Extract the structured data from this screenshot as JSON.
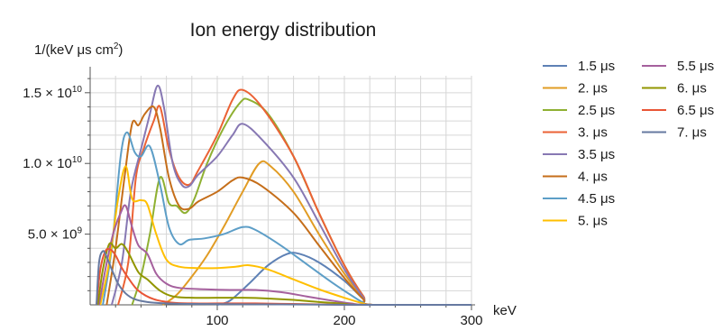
{
  "chart_data": {
    "type": "line",
    "title": "Ion energy distribution",
    "ylabel": "1/(keV μs cm2)",
    "xlabel": "keV",
    "xlim": [
      0,
      300
    ],
    "ylim": [
      0,
      16200000000.0
    ],
    "grid": true,
    "legend_position": "right",
    "x_ticks": [
      {
        "value": 100,
        "label": "100"
      },
      {
        "value": 200,
        "label": "200"
      },
      {
        "value": 300,
        "label": "300"
      }
    ],
    "y_ticks": [
      {
        "value": 5000000000.0,
        "mantissa": "5.0",
        "exponent": "9"
      },
      {
        "value": 10000000000.0,
        "mantissa": "1.0",
        "exponent": "10"
      },
      {
        "value": 15000000000.0,
        "mantissa": "1.5",
        "exponent": "10"
      }
    ],
    "series": [
      {
        "name": "1.5 μs",
        "color": "#5e81b5",
        "points": [
          [
            100,
            0
          ],
          [
            110,
            300000000.0
          ],
          [
            125,
            1500000000.0
          ],
          [
            140,
            2800000000.0
          ],
          [
            155,
            3600000000.0
          ],
          [
            165,
            3600000000.0
          ],
          [
            180,
            3000000000.0
          ],
          [
            200,
            1700000000.0
          ],
          [
            215,
            400000000.0
          ],
          [
            222,
            0
          ],
          [
            300,
            0
          ]
        ]
      },
      {
        "name": "2. μs",
        "color": "#e19c24",
        "points": [
          [
            57,
            0
          ],
          [
            68,
            700000000.0
          ],
          [
            80,
            2000000000.0
          ],
          [
            92,
            3500000000.0
          ],
          [
            105,
            5500000000.0
          ],
          [
            120,
            8000000000.0
          ],
          [
            133,
            10000000000.0
          ],
          [
            142,
            9800000000.0
          ],
          [
            160,
            8000000000.0
          ],
          [
            180,
            5000000000.0
          ],
          [
            200,
            2200000000.0
          ],
          [
            215,
            500000000.0
          ],
          [
            222,
            0
          ],
          [
            300,
            0
          ]
        ]
      },
      {
        "name": "2.5 μs",
        "color": "#8fb032",
        "points": [
          [
            33,
            0
          ],
          [
            40,
            2000000000.0
          ],
          [
            47,
            5000000000.0
          ],
          [
            55,
            9000000000.0
          ],
          [
            62,
            7200000000.0
          ],
          [
            68,
            7000000000.0
          ],
          [
            75,
            6500000000.0
          ],
          [
            82,
            7500000000.0
          ],
          [
            92,
            10000000000.0
          ],
          [
            105,
            12500000000.0
          ],
          [
            118,
            14300000000.0
          ],
          [
            125,
            14500000000.0
          ],
          [
            140,
            13500000000.0
          ],
          [
            160,
            10500000000.0
          ],
          [
            180,
            6500000000.0
          ],
          [
            200,
            2800000000.0
          ],
          [
            215,
            600000000.0
          ],
          [
            222,
            0
          ],
          [
            300,
            0
          ]
        ]
      },
      {
        "name": "3. μs",
        "color": "#eb6235",
        "points": [
          [
            22,
            0
          ],
          [
            30,
            3000000000.0
          ],
          [
            36,
            9000000000.0
          ],
          [
            42,
            11000000000.0
          ],
          [
            50,
            13000000000.0
          ],
          [
            55,
            14000000000.0
          ],
          [
            62,
            11000000000.0
          ],
          [
            70,
            9000000000.0
          ],
          [
            78,
            8500000000.0
          ],
          [
            85,
            9500000000.0
          ],
          [
            100,
            12000000000.0
          ],
          [
            112,
            14500000000.0
          ],
          [
            120,
            15200000000.0
          ],
          [
            135,
            14000000000.0
          ],
          [
            160,
            10500000000.0
          ],
          [
            180,
            6500000000.0
          ],
          [
            200,
            2800000000.0
          ],
          [
            215,
            600000000.0
          ],
          [
            222,
            0
          ],
          [
            300,
            0
          ]
        ]
      },
      {
        "name": "3.5 μs",
        "color": "#8778b3",
        "points": [
          [
            17,
            0
          ],
          [
            25,
            3000000000.0
          ],
          [
            32,
            8000000000.0
          ],
          [
            40,
            11000000000.0
          ],
          [
            47,
            13500000000.0
          ],
          [
            53,
            15500000000.0
          ],
          [
            58,
            14000000000.0
          ],
          [
            65,
            10000000000.0
          ],
          [
            72,
            8500000000.0
          ],
          [
            78,
            8400000000.0
          ],
          [
            85,
            9200000000.0
          ],
          [
            100,
            10500000000.0
          ],
          [
            112,
            12000000000.0
          ],
          [
            120,
            12800000000.0
          ],
          [
            135,
            11700000000.0
          ],
          [
            160,
            9000000000.0
          ],
          [
            180,
            5800000000.0
          ],
          [
            200,
            2500000000.0
          ],
          [
            215,
            500000000.0
          ],
          [
            222,
            0
          ],
          [
            300,
            0
          ]
        ]
      },
      {
        "name": "4. μs",
        "color": "#c56e1a",
        "points": [
          [
            13,
            0
          ],
          [
            20,
            4000000000.0
          ],
          [
            27,
            9000000000.0
          ],
          [
            33,
            12800000000.0
          ],
          [
            38,
            12700000000.0
          ],
          [
            43,
            13500000000.0
          ],
          [
            50,
            14000000000.0
          ],
          [
            55,
            12500000000.0
          ],
          [
            62,
            9000000000.0
          ],
          [
            70,
            7000000000.0
          ],
          [
            78,
            6800000000.0
          ],
          [
            85,
            7300000000.0
          ],
          [
            100,
            8000000000.0
          ],
          [
            112,
            8800000000.0
          ],
          [
            120,
            9000000000.0
          ],
          [
            135,
            8400000000.0
          ],
          [
            160,
            6500000000.0
          ],
          [
            180,
            4200000000.0
          ],
          [
            200,
            1900000000.0
          ],
          [
            215,
            400000000.0
          ],
          [
            222,
            0
          ],
          [
            300,
            0
          ]
        ]
      },
      {
        "name": "4.5 μs",
        "color": "#5d9ec7",
        "points": [
          [
            10,
            0
          ],
          [
            17,
            4000000000.0
          ],
          [
            24,
            10500000000.0
          ],
          [
            29,
            12200000000.0
          ],
          [
            35,
            10800000000.0
          ],
          [
            40,
            10500000000.0
          ],
          [
            47,
            11200000000.0
          ],
          [
            55,
            8500000000.0
          ],
          [
            62,
            5500000000.0
          ],
          [
            70,
            4300000000.0
          ],
          [
            78,
            4600000000.0
          ],
          [
            90,
            4700000000.0
          ],
          [
            105,
            5000000000.0
          ],
          [
            120,
            5500000000.0
          ],
          [
            130,
            5300000000.0
          ],
          [
            150,
            4200000000.0
          ],
          [
            170,
            2900000000.0
          ],
          [
            190,
            1600000000.0
          ],
          [
            205,
            700000000.0
          ],
          [
            215,
            150000000.0
          ],
          [
            222,
            0
          ],
          [
            300,
            0
          ]
        ]
      },
      {
        "name": "5. μs",
        "color": "#ffbf00",
        "points": [
          [
            8,
            0
          ],
          [
            15,
            3000000000.0
          ],
          [
            22,
            7500000000.0
          ],
          [
            28,
            9800000000.0
          ],
          [
            33,
            7500000000.0
          ],
          [
            40,
            7400000000.0
          ],
          [
            45,
            7100000000.0
          ],
          [
            52,
            5000000000.0
          ],
          [
            60,
            3200000000.0
          ],
          [
            70,
            2700000000.0
          ],
          [
            85,
            2600000000.0
          ],
          [
            100,
            2600000000.0
          ],
          [
            115,
            2700000000.0
          ],
          [
            125,
            2800000000.0
          ],
          [
            140,
            2500000000.0
          ],
          [
            160,
            1800000000.0
          ],
          [
            180,
            1100000000.0
          ],
          [
            200,
            500000000.0
          ],
          [
            215,
            100000000.0
          ],
          [
            222,
            0
          ],
          [
            300,
            0
          ]
        ]
      },
      {
        "name": "5.5 μs",
        "color": "#a5609d",
        "points": [
          [
            7,
            0
          ],
          [
            12,
            2500000000.0
          ],
          [
            18,
            5000000000.0
          ],
          [
            24,
            6500000000.0
          ],
          [
            28,
            7000000000.0
          ],
          [
            33,
            5500000000.0
          ],
          [
            38,
            4200000000.0
          ],
          [
            45,
            3600000000.0
          ],
          [
            52,
            2200000000.0
          ],
          [
            60,
            1500000000.0
          ],
          [
            70,
            1200000000.0
          ],
          [
            90,
            1100000000.0
          ],
          [
            110,
            1050000000.0
          ],
          [
            130,
            1050000000.0
          ],
          [
            150,
            900000000.0
          ],
          [
            170,
            600000000.0
          ],
          [
            190,
            300000000.0
          ],
          [
            205,
            100000000.0
          ],
          [
            222,
            0
          ],
          [
            300,
            0
          ]
        ]
      },
      {
        "name": "6. μs",
        "color": "#929600",
        "points": [
          [
            6,
            0
          ],
          [
            10,
            2500000000.0
          ],
          [
            15,
            4300000000.0
          ],
          [
            20,
            4000000000.0
          ],
          [
            25,
            4300000000.0
          ],
          [
            30,
            3700000000.0
          ],
          [
            38,
            2300000000.0
          ],
          [
            45,
            1800000000.0
          ],
          [
            55,
            1000000000.0
          ],
          [
            65,
            600000000.0
          ],
          [
            80,
            500000000.0
          ],
          [
            100,
            500000000.0
          ],
          [
            120,
            500000000.0
          ],
          [
            140,
            450000000.0
          ],
          [
            160,
            350000000.0
          ],
          [
            180,
            200000000.0
          ],
          [
            200,
            80000000.0
          ],
          [
            215,
            0
          ],
          [
            300,
            0
          ]
        ]
      },
      {
        "name": "6.5 μs",
        "color": "#e95536",
        "points": [
          [
            5,
            0
          ],
          [
            8,
            2500000000.0
          ],
          [
            12,
            3800000000.0
          ],
          [
            16,
            3900000000.0
          ],
          [
            20,
            3500000000.0
          ],
          [
            25,
            2600000000.0
          ],
          [
            30,
            1900000000.0
          ],
          [
            38,
            1000000000.0
          ],
          [
            50,
            400000000.0
          ],
          [
            65,
            150000000.0
          ],
          [
            80,
            100000000.0
          ],
          [
            100,
            100000000.0
          ],
          [
            130,
            100000000.0
          ],
          [
            160,
            60000000.0
          ],
          [
            190,
            20000000.0
          ],
          [
            222,
            0
          ],
          [
            300,
            0
          ]
        ]
      },
      {
        "name": "7. μs",
        "color": "#6679a0",
        "points": [
          [
            5,
            0
          ],
          [
            7,
            3000000000.0
          ],
          [
            10,
            3800000000.0
          ],
          [
            13,
            3400000000.0
          ],
          [
            17,
            2500000000.0
          ],
          [
            22,
            1500000000.0
          ],
          [
            28,
            800000000.0
          ],
          [
            35,
            400000000.0
          ],
          [
            45,
            200000000.0
          ],
          [
            60,
            100000000.0
          ],
          [
            80,
            60000000.0
          ],
          [
            120,
            40000000.0
          ],
          [
            180,
            20000000.0
          ],
          [
            222,
            0
          ],
          [
            300,
            0
          ]
        ]
      }
    ]
  }
}
